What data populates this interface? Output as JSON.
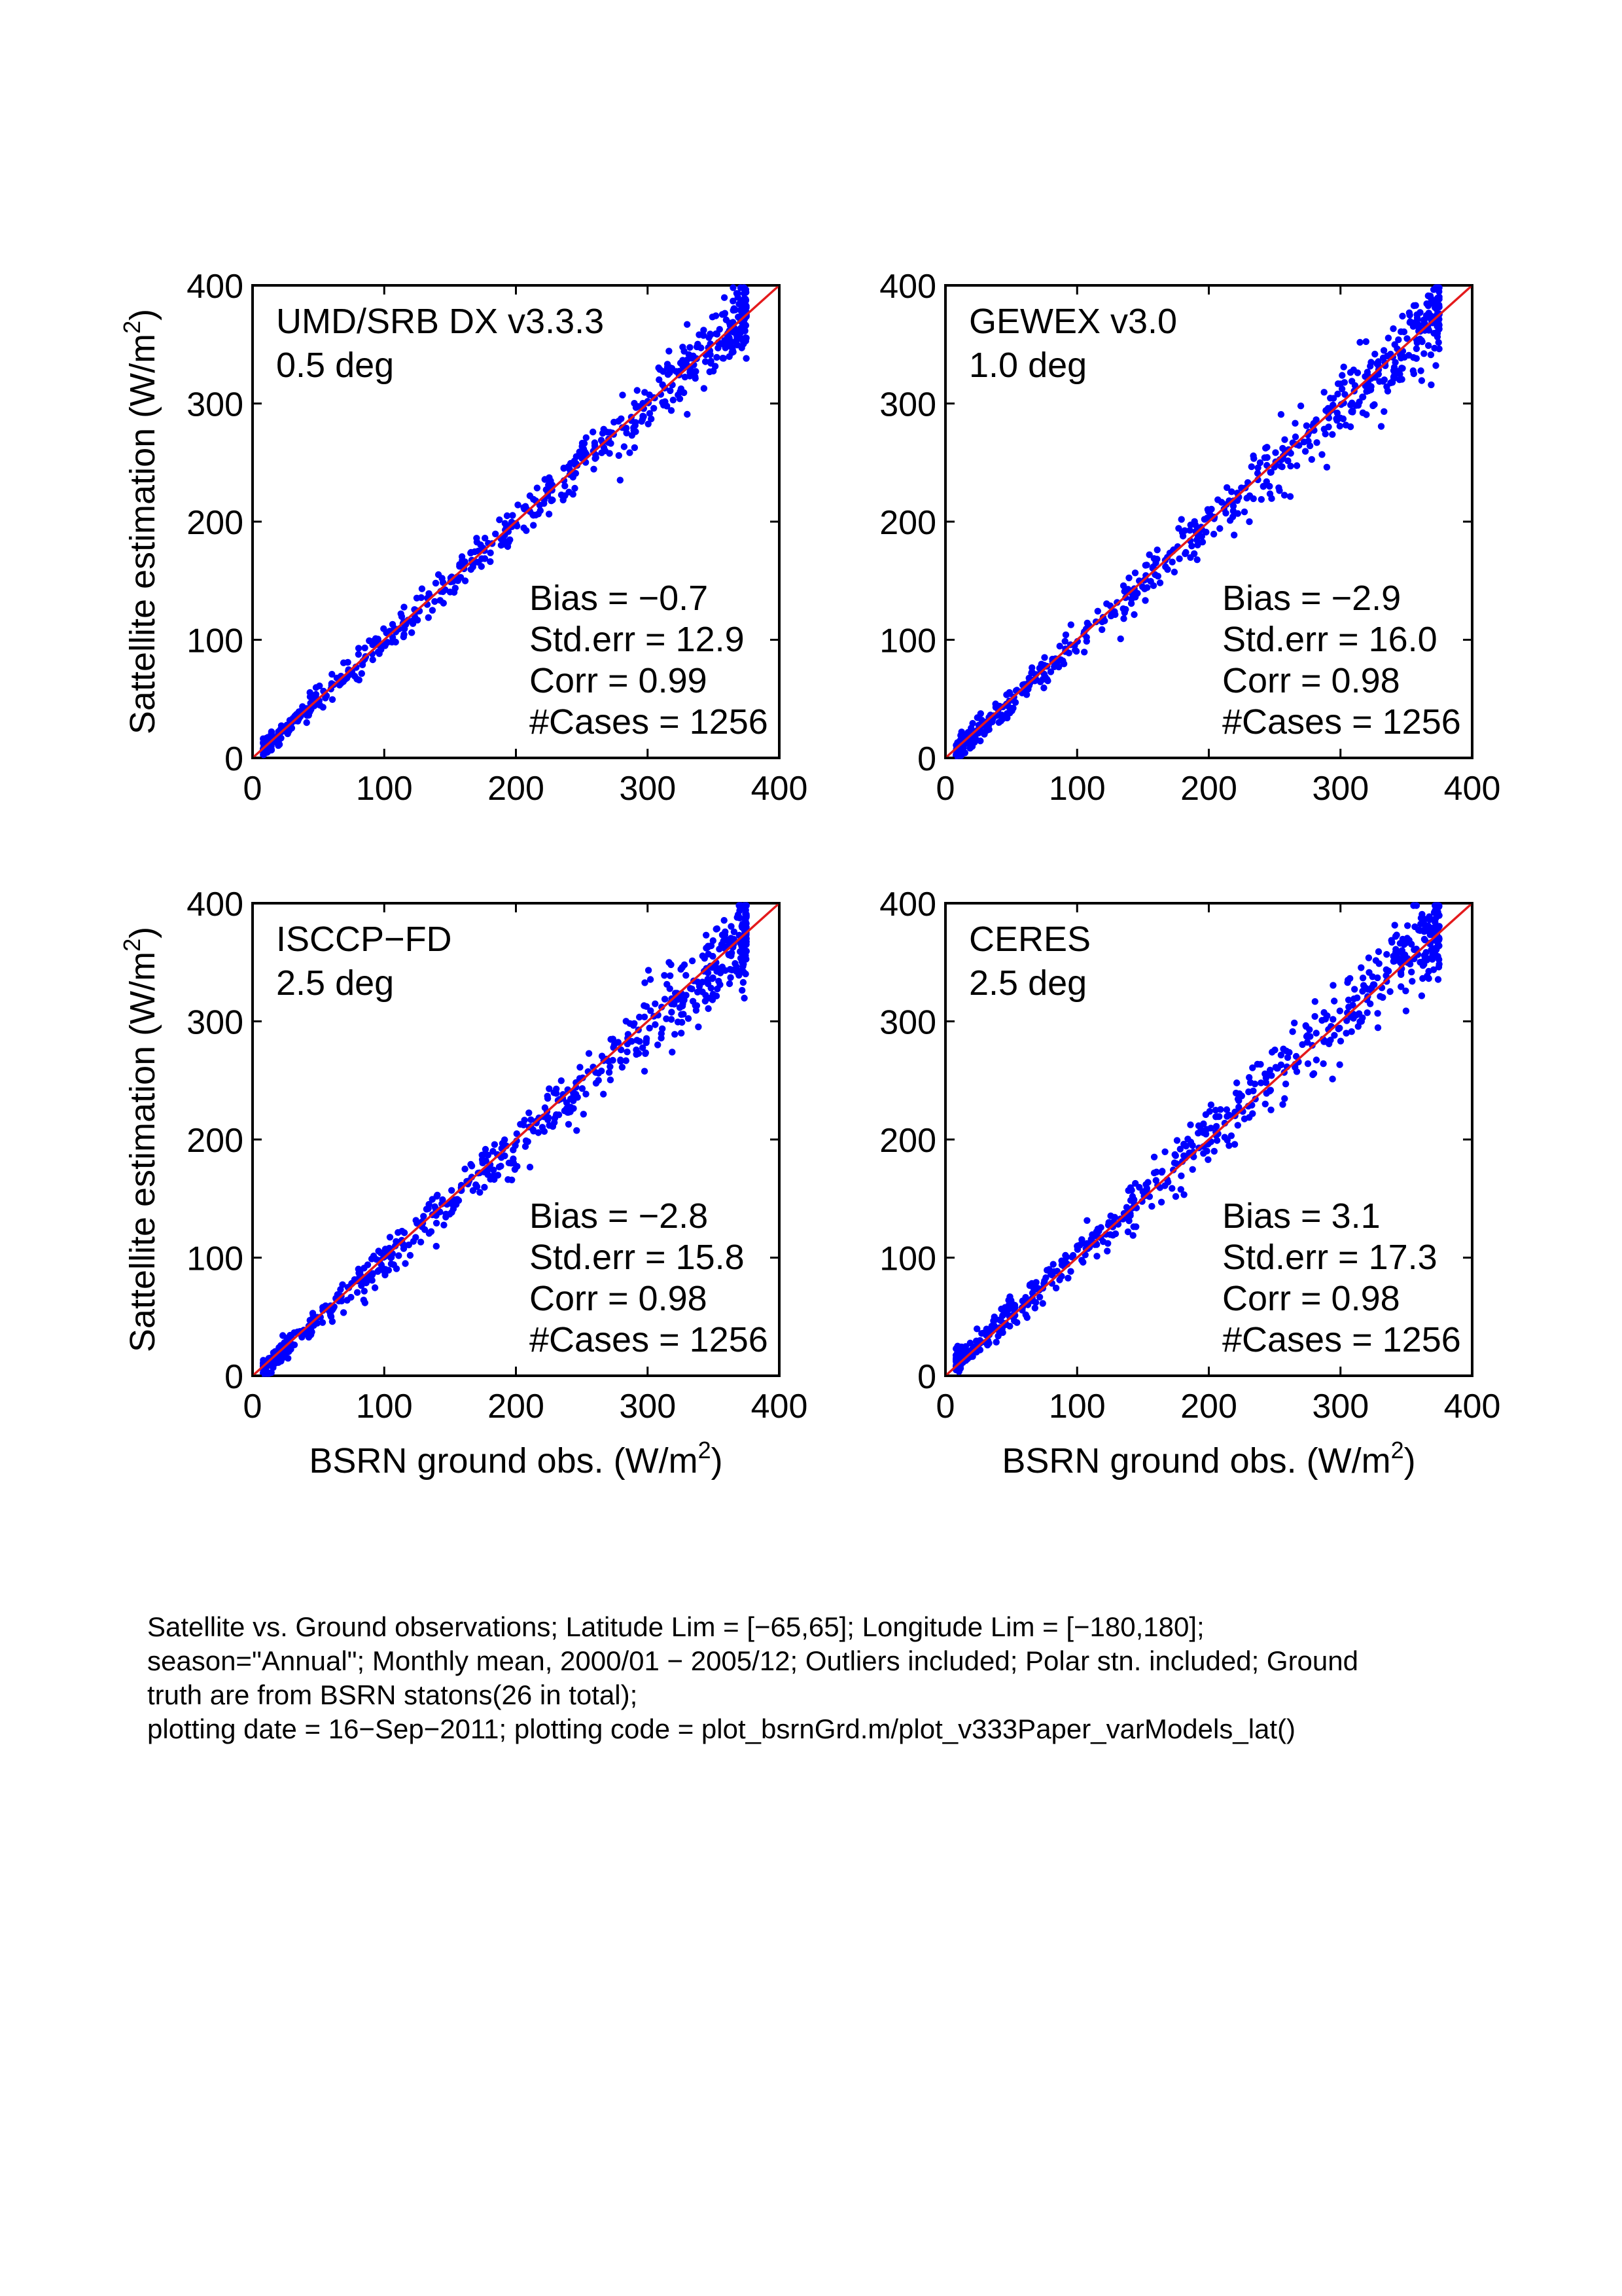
{
  "chart_data": {
    "type": "scatter",
    "layout": "2x2 grid",
    "x_label": "BSRN ground obs. (W/m",
    "x_label_sup": "2",
    "x_label_end": ")",
    "y_label": "Sattellite estimation (W/m",
    "y_label_sup": "2",
    "y_label_end": ")",
    "xlim": [
      0,
      400
    ],
    "ylim": [
      0,
      400
    ],
    "x_ticks": [
      "0",
      "100",
      "200",
      "300",
      "400"
    ],
    "y_ticks": [
      "0",
      "100",
      "200",
      "300",
      "400"
    ],
    "x_tick_values": [
      0,
      100,
      200,
      300,
      400
    ],
    "y_tick_values": [
      0,
      100,
      200,
      300,
      400
    ],
    "grid": false,
    "reference_line": {
      "type": "1:1",
      "from": [
        0,
        0
      ],
      "to": [
        400,
        400
      ],
      "color": "#e41a1c"
    },
    "marker_color": "#0000ff",
    "panels": [
      {
        "name": "UMD/SRB DX v3.3.3",
        "resolution": "0.5 deg",
        "stats": [
          "Bias = −0.7",
          "Std.err = 12.9",
          "Corr = 0.99",
          "#Cases = 1256"
        ],
        "bias": -0.7,
        "std_err": 12.9,
        "corr": 0.99,
        "cases": 1256,
        "x_range_observed": [
          8,
          375
        ],
        "rendered_points": 650,
        "seed": 11
      },
      {
        "name": "GEWEX v3.0",
        "resolution": "1.0 deg",
        "stats": [
          "Bias = −2.9",
          "Std.err = 16.0",
          "Corr = 0.98",
          "#Cases = 1256"
        ],
        "bias": -2.9,
        "std_err": 16.0,
        "corr": 0.98,
        "cases": 1256,
        "x_range_observed": [
          8,
          375
        ],
        "rendered_points": 650,
        "seed": 23
      },
      {
        "name": "ISCCP−FD",
        "resolution": "2.5 deg",
        "stats": [
          "Bias = −2.8",
          "Std.err = 15.8",
          "Corr = 0.98",
          "#Cases = 1256"
        ],
        "bias": -2.8,
        "std_err": 15.8,
        "corr": 0.98,
        "cases": 1256,
        "x_range_observed": [
          8,
          375
        ],
        "rendered_points": 650,
        "seed": 37
      },
      {
        "name": "CERES",
        "resolution": "2.5 deg",
        "stats": [
          "Bias = 3.1",
          "Std.err = 17.3",
          "Corr = 0.98",
          "#Cases = 1256"
        ],
        "bias": 3.1,
        "std_err": 17.3,
        "corr": 0.98,
        "cases": 1256,
        "x_range_observed": [
          8,
          375
        ],
        "rendered_points": 650,
        "seed": 53
      }
    ]
  },
  "footer": {
    "lines": [
      "Satellite vs. Ground observations; Latitude Lim = [−65,65]; Longitude Lim = [−180,180];",
      "season=\"Annual\"; Monthly mean, 2000/01 − 2005/12; Outliers included; Polar stn. included; Ground",
      "truth are from BSRN statons(26 in total);",
      "plotting date = 16−Sep−2011; plotting code = plot_bsrnGrd.m/plot_v333Paper_varModels_lat()"
    ]
  }
}
